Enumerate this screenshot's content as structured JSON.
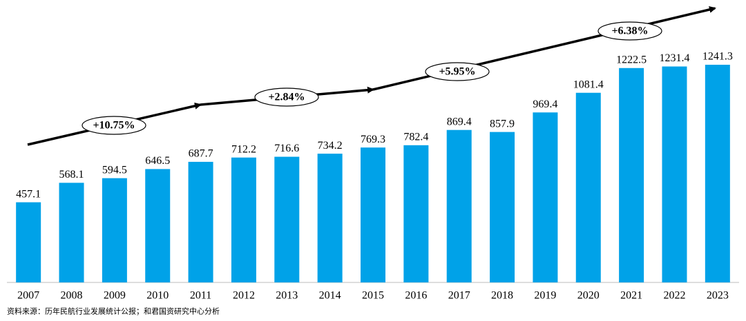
{
  "chart_data": {
    "type": "bar",
    "categories": [
      "2007",
      "2008",
      "2009",
      "2010",
      "2011",
      "2012",
      "2013",
      "2014",
      "2015",
      "2016",
      "2017",
      "2018",
      "2019",
      "2020",
      "2021",
      "2022",
      "2023"
    ],
    "values": [
      457.1,
      568.1,
      594.5,
      646.5,
      687.7,
      712.2,
      716.6,
      734.2,
      769.3,
      782.4,
      869.4,
      857.9,
      969.4,
      1081.4,
      1222.5,
      1231.4,
      1241.3
    ],
    "color": "#00a2e8",
    "annotations": [
      "+10.75%",
      "+2.84%",
      "+5.95%",
      "+6.38%"
    ]
  },
  "source": "资料来源：历年民航行业发展统计公报；和君国资研究中心分析"
}
